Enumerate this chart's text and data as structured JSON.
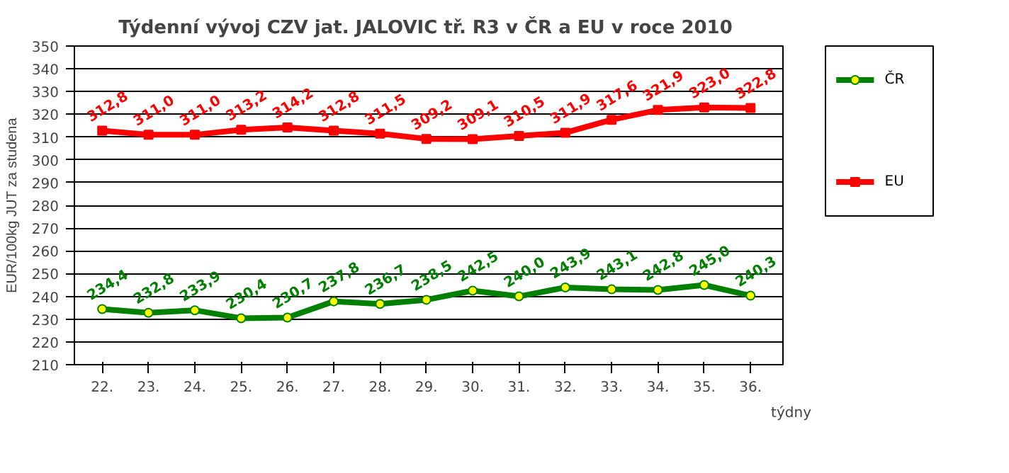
{
  "chart_data": {
    "type": "line",
    "title": "Týdenní vývoj CZV jat. JALOVIC tř. R3  v ČR a EU v roce 2010",
    "xlabel": "týdny",
    "ylabel": "EUR/100kg JUT za studena",
    "categories": [
      "22.",
      "23.",
      "24.",
      "25.",
      "26.",
      "27.",
      "28.",
      "29.",
      "30.",
      "31.",
      "32.",
      "33.",
      "34.",
      "35.",
      "36."
    ],
    "series": [
      {
        "name": "ČR",
        "color": "#008000",
        "marker": "circle",
        "values": [
          234.4,
          232.8,
          233.9,
          230.4,
          230.7,
          237.8,
          236.7,
          238.5,
          242.5,
          240.0,
          243.9,
          243.1,
          242.8,
          245.0,
          240.3
        ],
        "value_labels": [
          "234,4",
          "232,8",
          "233,9",
          "230,4",
          "230,7",
          "237,8",
          "236,7",
          "238,5",
          "242,5",
          "240,0",
          "243,9",
          "243,1",
          "242,8",
          "245,0",
          "240,3"
        ]
      },
      {
        "name": "EU",
        "color": "#ff0000",
        "marker": "square",
        "values": [
          312.8,
          311.0,
          311.0,
          313.2,
          314.2,
          312.8,
          311.5,
          309.2,
          309.1,
          310.5,
          311.9,
          317.6,
          321.9,
          323.0,
          322.8
        ],
        "value_labels": [
          "312,8",
          "311,0",
          "311,0",
          "313,2",
          "314,2",
          "312,8",
          "311,5",
          "309,2",
          "309,1",
          "310,5",
          "311,9",
          "317,6",
          "321,9",
          "323,0",
          "322,8"
        ]
      }
    ],
    "ylim": [
      210,
      350
    ],
    "yticks": [
      210,
      220,
      230,
      240,
      250,
      260,
      270,
      280,
      290,
      300,
      310,
      320,
      330,
      340,
      350
    ],
    "grid": "y",
    "legend": "right"
  }
}
